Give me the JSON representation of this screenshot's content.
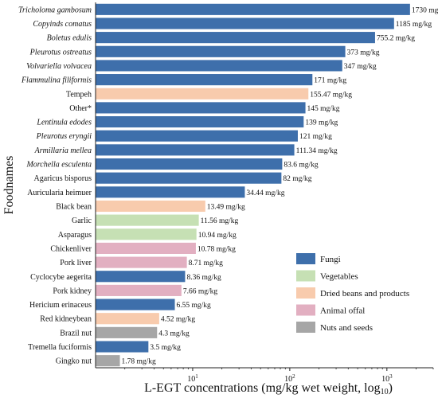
{
  "chart_data": {
    "type": "bar",
    "orientation": "horizontal",
    "xlabel": "L-EGT concentrations (mg/kg wet weight, log10)",
    "ylabel": "Foodnames",
    "x_scale": "log",
    "xlim": [
      1,
      3000
    ],
    "x_ticks": [
      "10^1",
      "10^2",
      "10^3"
    ],
    "legend_position": "bottom-right",
    "unit": "mg/kg",
    "colors": {
      "Fungi": "#3e6fab",
      "Vegetables": "#c6e0b4",
      "Dried beans and products": "#f8cbad",
      "Animal offal": "#e2afc1",
      "Nuts and seeds": "#a6a6a6"
    },
    "legend": [
      "Fungi",
      "Vegetables",
      "Dried beans and products",
      "Animal offal",
      "Nuts and seeds"
    ],
    "items": [
      {
        "name": "Tricholoma gambosum",
        "value": 1730,
        "label": "1730 mg/kg",
        "group": "Fungi",
        "italic": true
      },
      {
        "name": "Copyinds comatus",
        "value": 1185,
        "label": "1185 mg/kg",
        "group": "Fungi",
        "italic": true
      },
      {
        "name": "Boletus edulis",
        "value": 755.2,
        "label": "755.2 mg/kg",
        "group": "Fungi",
        "italic": true
      },
      {
        "name": "Pleurotus ostreatus",
        "value": 373,
        "label": "373 mg/kg",
        "group": "Fungi",
        "italic": true
      },
      {
        "name": "Volvariella volvacea",
        "value": 347,
        "label": "347 mg/kg",
        "group": "Fungi",
        "italic": true
      },
      {
        "name": "Flammulina filiformis",
        "value": 171,
        "label": "171 mg/kg",
        "group": "Fungi",
        "italic": true
      },
      {
        "name": "Tempeh",
        "value": 155.47,
        "label": "155.47 mg/kg",
        "group": "Dried beans and products",
        "italic": false
      },
      {
        "name": "Other*",
        "value": 145,
        "label": "145 mg/kg",
        "group": "Fungi",
        "italic": false
      },
      {
        "name": "Lentinula edodes",
        "value": 139,
        "label": "139 mg/kg",
        "group": "Fungi",
        "italic": true
      },
      {
        "name": "Pleurotus eryngii",
        "value": 121,
        "label": "121 mg/kg",
        "group": "Fungi",
        "italic": true
      },
      {
        "name": "Armillaria mellea",
        "value": 111.34,
        "label": "111.34 mg/kg",
        "group": "Fungi",
        "italic": true
      },
      {
        "name": "Morchella esculenta",
        "value": 83.6,
        "label": "83.6 mg/kg",
        "group": "Fungi",
        "italic": true
      },
      {
        "name": "Agaricus bisporus",
        "value": 82,
        "label": "82 mg/kg",
        "group": "Fungi",
        "italic": false
      },
      {
        "name": "Auricularia heimuer",
        "value": 34.44,
        "label": "34.44 mg/kg",
        "group": "Fungi",
        "italic": false
      },
      {
        "name": "Black bean",
        "value": 13.49,
        "label": "13.49 mg/kg",
        "group": "Dried beans and products",
        "italic": false
      },
      {
        "name": "Garlic",
        "value": 11.56,
        "label": "11.56 mg/kg",
        "group": "Vegetables",
        "italic": false
      },
      {
        "name": "Asparagus",
        "value": 10.94,
        "label": "10.94 mg/kg",
        "group": "Vegetables",
        "italic": false
      },
      {
        "name": "Chickenliver",
        "value": 10.78,
        "label": "10.78 mg/kg",
        "group": "Animal offal",
        "italic": false
      },
      {
        "name": "Pork liver",
        "value": 8.71,
        "label": "8.71 mg/kg",
        "group": "Animal offal",
        "italic": false
      },
      {
        "name": "Cyclocybe aegerita",
        "value": 8.36,
        "label": "8.36 mg/kg",
        "group": "Fungi",
        "italic": false
      },
      {
        "name": "Pork kidney",
        "value": 7.66,
        "label": "7.66 mg/kg",
        "group": "Animal offal",
        "italic": false
      },
      {
        "name": "Hericium erinaceus",
        "value": 6.55,
        "label": "6.55 mg/kg",
        "group": "Fungi",
        "italic": false
      },
      {
        "name": "Red kidneybean",
        "value": 4.52,
        "label": "4.52 mg/kg",
        "group": "Dried beans and products",
        "italic": false
      },
      {
        "name": "Brazil nut",
        "value": 4.3,
        "label": "4.3 mg/kg",
        "group": "Nuts and seeds",
        "italic": false
      },
      {
        "name": "Tremella fuciformis",
        "value": 3.5,
        "label": "3.5 mg/kg",
        "group": "Fungi",
        "italic": false
      },
      {
        "name": "Gingko nut",
        "value": 1.78,
        "label": "1.78 mg/kg",
        "group": "Nuts and seeds",
        "italic": false
      }
    ]
  }
}
